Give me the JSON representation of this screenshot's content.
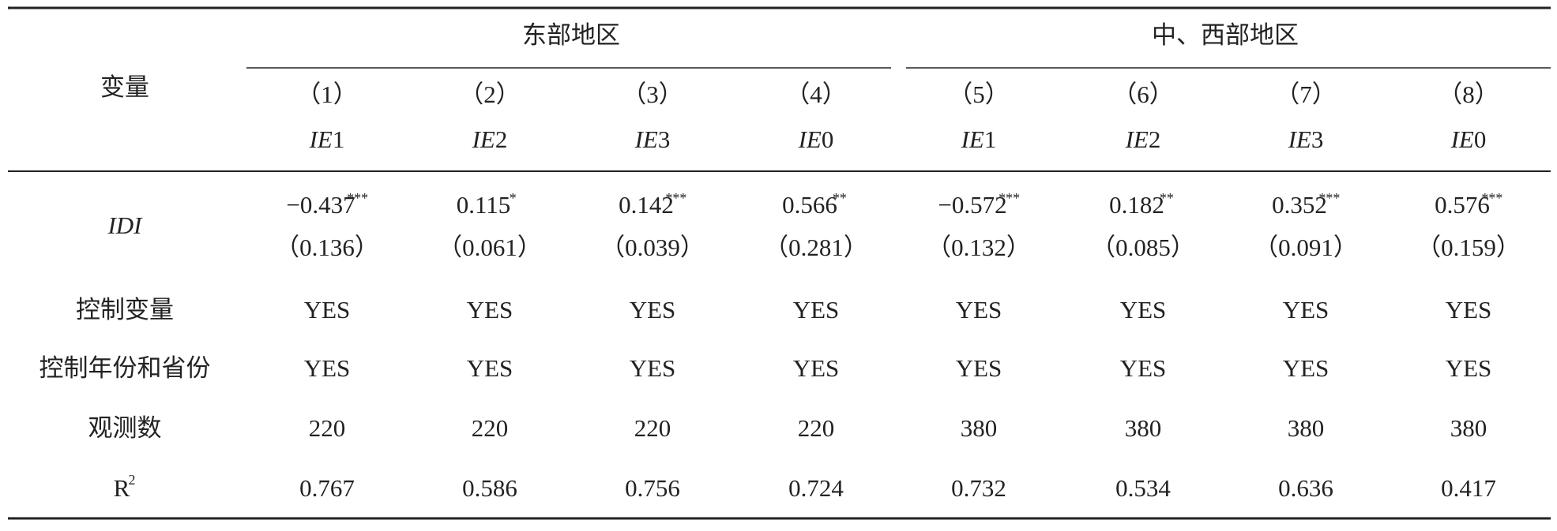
{
  "table": {
    "header_label": "变量",
    "group_headers": [
      "东部地区",
      "中、西部地区"
    ],
    "column_numbers": [
      "（1）",
      "（2）",
      "（3）",
      "（4）",
      "（5）",
      "（6）",
      "（7）",
      "（8）"
    ],
    "column_vars": [
      "IE1",
      "IE2",
      "IE3",
      "IE0",
      "IE1",
      "IE2",
      "IE3",
      "IE0"
    ],
    "idi": {
      "label": "IDI",
      "coefficients": [
        "−0.437",
        "0.115",
        "0.142",
        "0.566",
        "−0.572",
        "0.182",
        "0.352",
        "0.576"
      ],
      "stars": [
        "***",
        "*",
        "***",
        "**",
        "***",
        "**",
        "***",
        "***"
      ],
      "std_errors": [
        "（0.136）",
        "（0.061）",
        "（0.039）",
        "（0.281）",
        "（0.132）",
        "（0.085）",
        "（0.091）",
        "（0.159）"
      ]
    },
    "rows": [
      {
        "label": "控制变量",
        "values": [
          "YES",
          "YES",
          "YES",
          "YES",
          "YES",
          "YES",
          "YES",
          "YES"
        ]
      },
      {
        "label": "控制年份和省份",
        "values": [
          "YES",
          "YES",
          "YES",
          "YES",
          "YES",
          "YES",
          "YES",
          "YES"
        ]
      },
      {
        "label": "观测数",
        "values": [
          "220",
          "220",
          "220",
          "220",
          "380",
          "380",
          "380",
          "380"
        ]
      }
    ],
    "r2": {
      "label": "R",
      "label_sup": "2",
      "values": [
        "0.767",
        "0.586",
        "0.756",
        "0.724",
        "0.732",
        "0.534",
        "0.636",
        "0.417"
      ]
    }
  }
}
